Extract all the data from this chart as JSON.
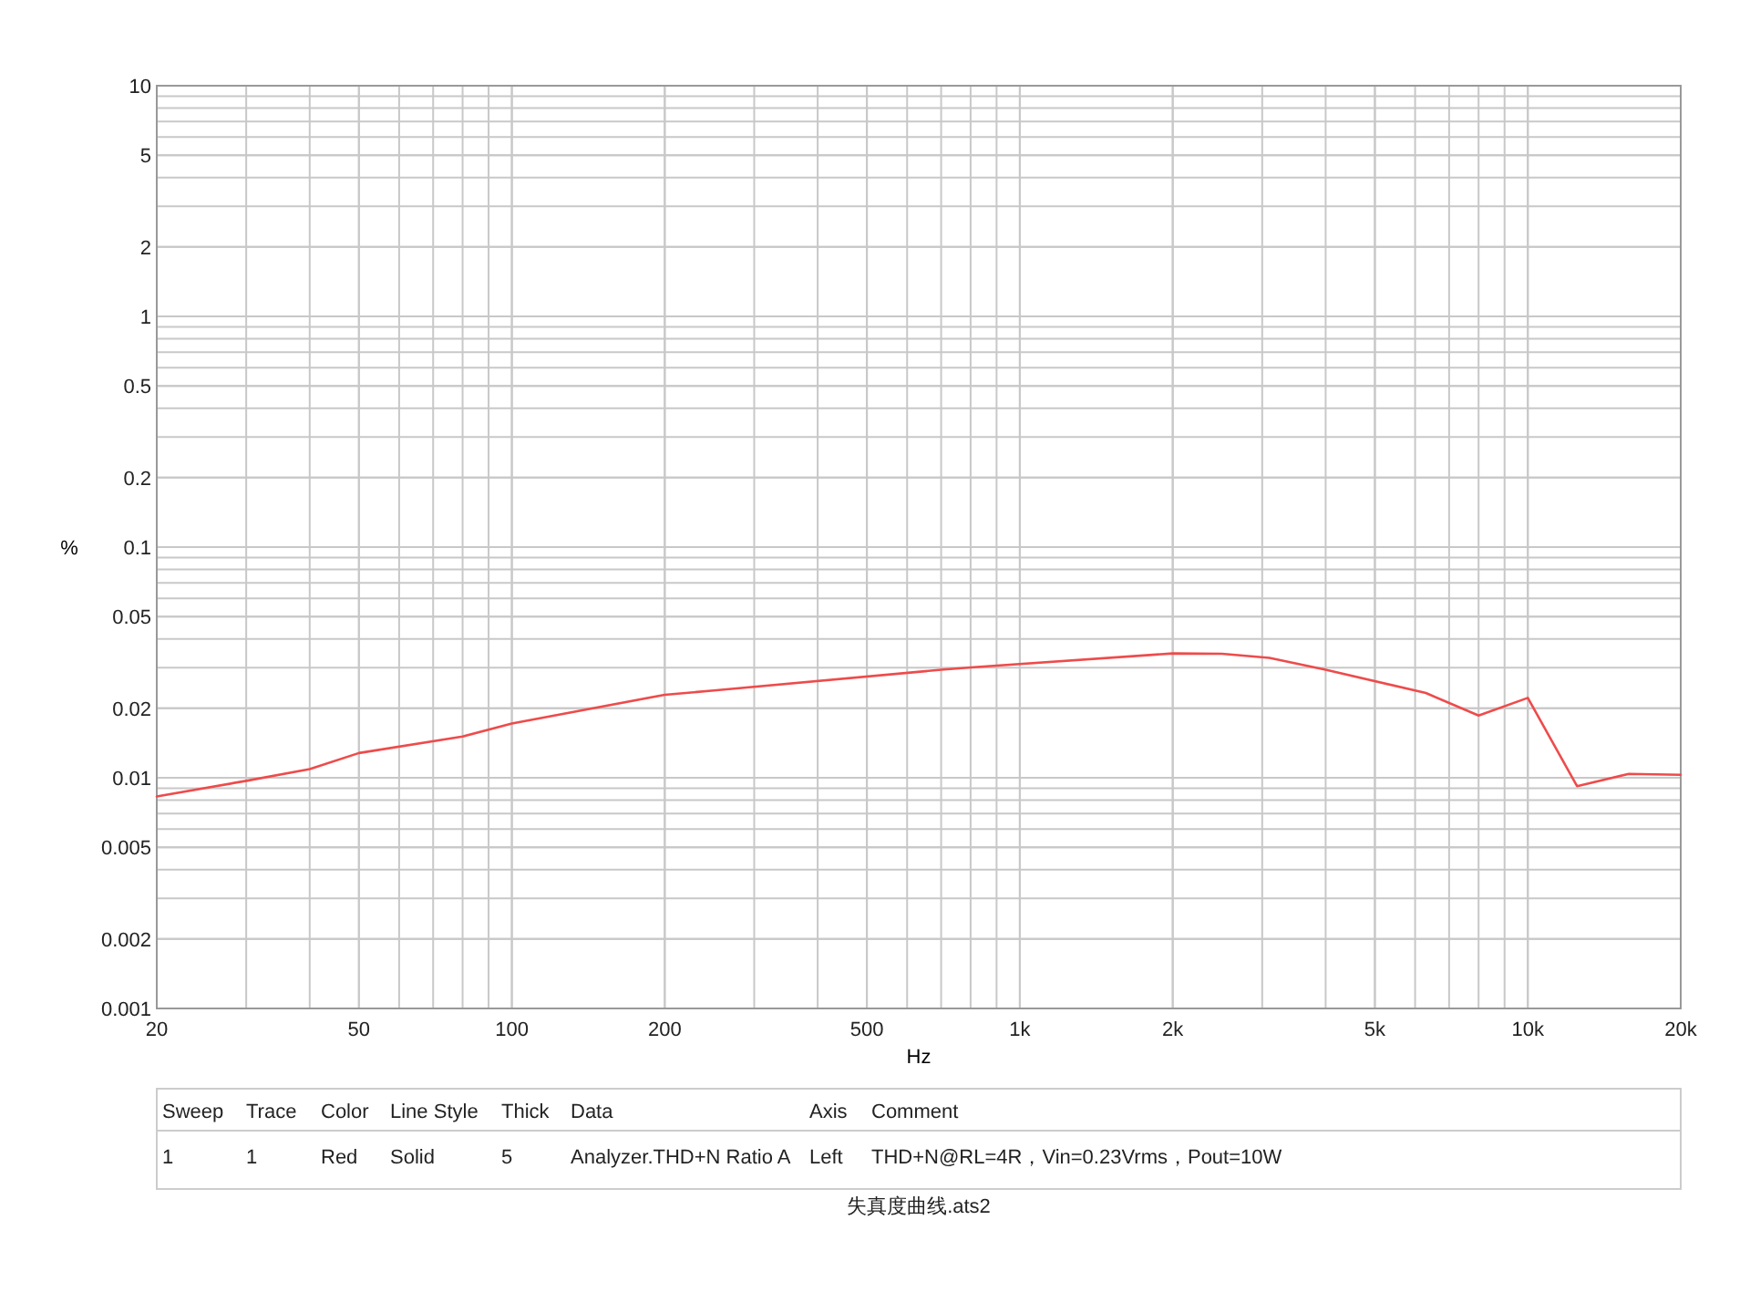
{
  "chart_data": {
    "type": "line",
    "xlabel": "Hz",
    "ylabel": "%",
    "log": "xy",
    "grid": true,
    "line_style": "solid",
    "x": [
      20,
      30,
      40,
      50,
      80,
      100,
      200,
      250,
      700,
      800,
      2000,
      2500,
      3100,
      4000,
      6300,
      8000,
      10000,
      12500,
      15800,
      20000
    ],
    "series": [
      {
        "color": "#ee4b4b",
        "values": [
          0.0083,
          0.0097,
          0.0109,
          0.0128,
          0.0151,
          0.0172,
          0.0229,
          0.0239,
          0.0294,
          0.0301,
          0.0346,
          0.0345,
          0.0331,
          0.0294,
          0.0233,
          0.0186,
          0.0222,
          0.0092,
          0.0104,
          0.0103
        ]
      }
    ],
    "xlim": [
      20,
      20000
    ],
    "ylim": [
      0.001,
      10
    ],
    "xticks": [
      20,
      50,
      100,
      200,
      500,
      {
        "value": 1000,
        "label": "1k"
      },
      {
        "value": 2000,
        "label": "2k"
      },
      {
        "value": 5000,
        "label": "5k"
      },
      {
        "value": 10000,
        "label": "10k"
      },
      {
        "value": 20000,
        "label": "20k"
      }
    ],
    "yticks": [
      0.001,
      0.002,
      0.005,
      0.01,
      0.02,
      0.05,
      0.1,
      0.2,
      0.5,
      1,
      2,
      5,
      10
    ],
    "annotations": [
      "Sweep",
      "Trace",
      "Color",
      "Line Style",
      "Thick",
      "Data",
      "Axis",
      "Comment",
      "1",
      "1",
      "Red",
      "Solid",
      "5",
      "Analyzer.THD+N Ratio A",
      "Left",
      "THD+N@RL=4R，Vin=0.23Vrms，Pout=10W",
      "失真度曲线.ats2"
    ]
  }
}
